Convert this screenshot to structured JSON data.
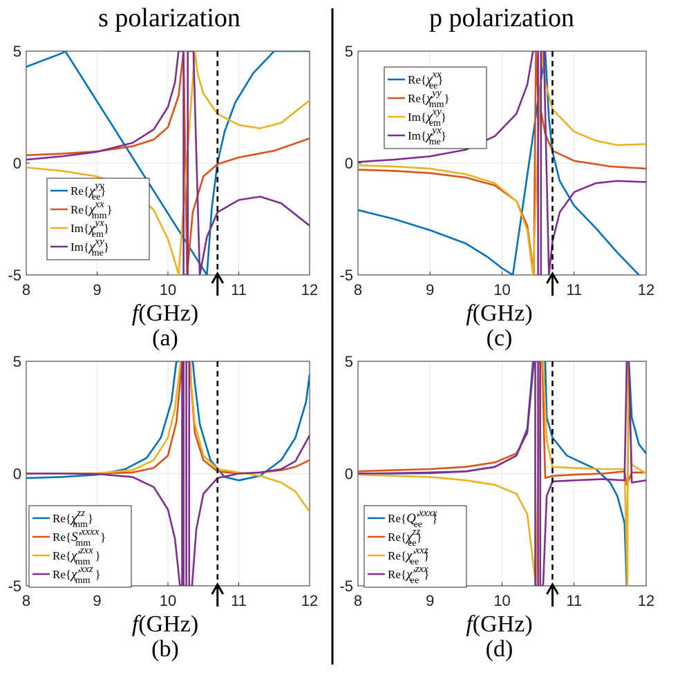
{
  "figure": {
    "left_title": "s polarization",
    "right_title": "p polarization"
  },
  "colors": {
    "blue": "#0072BD",
    "orange": "#D95319",
    "yellow": "#EDB120",
    "purple": "#7E2F8E"
  },
  "chart_data": [
    {
      "id": "a",
      "type": "line",
      "panel_label": "(a)",
      "xlabel_italic": "f",
      "xlabel_unit": "(GHz)",
      "xlim": [
        8,
        12
      ],
      "ylim": [
        -5,
        5
      ],
      "xticks": [
        "8",
        "9",
        "10",
        "11",
        "12"
      ],
      "yticks": [
        "5",
        "0",
        "-5"
      ],
      "grid": true,
      "marker_freq": 10.7,
      "legend_position": "lower-left",
      "series": [
        {
          "name": "Re{χ_ee^yy}",
          "color": "blue",
          "x": [
            8,
            8.5,
            8.55,
            10.55,
            10.62,
            10.7,
            10.8,
            10.95,
            11.2,
            11.5,
            12
          ],
          "y": [
            4.3,
            4.9,
            5.0,
            -5.0,
            -2.0,
            0.0,
            1.4,
            2.7,
            4.0,
            5.0,
            5.0
          ]
        },
        {
          "name": "Re{χ_mm^xx}",
          "color": "orange",
          "x": [
            8,
            8.5,
            9,
            9.5,
            9.8,
            10,
            10.15,
            10.22,
            10.27,
            10.35,
            10.5,
            10.7,
            11,
            11.5,
            12
          ],
          "y": [
            0.35,
            0.42,
            0.52,
            0.75,
            1.05,
            1.6,
            3.0,
            5.0,
            -5.0,
            -2.2,
            -0.6,
            -0.05,
            0.25,
            0.55,
            1.1
          ]
        },
        {
          "name": "Im{χ_em^yx}",
          "color": "yellow",
          "x": [
            8,
            8.5,
            9,
            9.5,
            9.8,
            10,
            10.1,
            10.15,
            10.38,
            10.42,
            10.5,
            10.7,
            11,
            11.3,
            11.6,
            12
          ],
          "y": [
            -0.2,
            -0.35,
            -0.6,
            -1.2,
            -2.1,
            -3.4,
            -4.4,
            -5.0,
            5.0,
            4.0,
            3.1,
            2.2,
            1.7,
            1.55,
            1.8,
            2.8
          ]
        },
        {
          "name": "Im{χ_me^xy}",
          "color": "purple",
          "x": [
            8,
            8.5,
            9,
            9.5,
            9.8,
            10,
            10.1,
            10.15,
            10.22,
            10.22,
            10.28,
            10.28,
            10.36,
            10.45,
            10.55,
            10.7,
            11,
            11.3,
            11.6,
            12
          ],
          "y": [
            0.15,
            0.3,
            0.5,
            0.9,
            1.5,
            2.5,
            3.6,
            5.0,
            5.0,
            -5.0,
            -5.0,
            5.0,
            5.0,
            -5.0,
            -3.3,
            -2.2,
            -1.65,
            -1.5,
            -1.8,
            -2.8
          ]
        }
      ],
      "legend": [
        {
          "prefix": "Re",
          "sym": "χ",
          "sup": "yy",
          "sub": "ee",
          "color": "blue"
        },
        {
          "prefix": "Re",
          "sym": "χ",
          "sup": "xx",
          "sub": "mm",
          "color": "orange"
        },
        {
          "prefix": "Im",
          "sym": "χ",
          "sup": "yx",
          "sub": "em",
          "color": "yellow"
        },
        {
          "prefix": "Im",
          "sym": "χ",
          "sup": "xy",
          "sub": "me",
          "color": "purple"
        }
      ]
    },
    {
      "id": "b",
      "type": "line",
      "panel_label": "(b)",
      "xlabel_italic": "f",
      "xlabel_unit": "(GHz)",
      "xlim": [
        8,
        12
      ],
      "ylim": [
        -5,
        5
      ],
      "xticks": [
        "8",
        "9",
        "10",
        "11",
        "12"
      ],
      "yticks": [
        "5",
        "0",
        "-5"
      ],
      "grid": true,
      "marker_freq": 10.7,
      "legend_position": "lower-left",
      "series": [
        {
          "name": "Re{χ_mm^zz}",
          "color": "blue",
          "x": [
            8,
            8.5,
            9,
            9.4,
            9.7,
            9.9,
            10.05,
            10.12,
            10.15,
            10.35,
            10.38,
            10.45,
            10.6,
            10.8,
            11,
            11.3,
            11.6,
            11.8,
            11.95,
            12
          ],
          "y": [
            -0.2,
            -0.15,
            -0.05,
            0.2,
            0.7,
            1.6,
            3.2,
            5.0,
            5.0,
            5.0,
            4.0,
            2.2,
            0.6,
            -0.15,
            -0.3,
            -0.1,
            0.6,
            1.6,
            3.2,
            4.4
          ]
        },
        {
          "name": "Re{S'_mm^xxxx}",
          "color": "orange",
          "x": [
            8,
            8.5,
            9,
            9.5,
            9.8,
            10,
            10.12,
            10.2,
            10.22,
            10.3,
            10.32,
            10.38,
            10.5,
            10.7,
            11,
            11.3,
            11.6,
            11.8,
            12
          ],
          "y": [
            0,
            0,
            0,
            0.05,
            0.25,
            0.8,
            2.3,
            5.0,
            5.0,
            5.0,
            4.3,
            1.8,
            0.6,
            0.1,
            0.0,
            0.05,
            0.15,
            0.3,
            0.6
          ]
        },
        {
          "name": "Re{χ'_mm^zxx}",
          "color": "yellow",
          "x": [
            8,
            8.5,
            9,
            9.5,
            9.8,
            10,
            10.1,
            10.18,
            10.19,
            10.32,
            10.33,
            10.38,
            10.5,
            10.7,
            11,
            11.3,
            11.6,
            11.8,
            12
          ],
          "y": [
            0,
            0,
            0.02,
            0.15,
            0.6,
            1.6,
            2.9,
            5.0,
            5.0,
            5.0,
            4.0,
            2.2,
            0.8,
            0.2,
            0.05,
            -0.1,
            -0.4,
            -0.8,
            -1.7
          ]
        },
        {
          "name": "Re{χ'_mm^xxz}",
          "color": "purple",
          "x": [
            8,
            8.5,
            9,
            9.5,
            9.8,
            10,
            10.1,
            10.17,
            10.2,
            10.2,
            10.22,
            10.22,
            10.26,
            10.26,
            10.3,
            10.3,
            10.34,
            10.4,
            10.5,
            10.7,
            11,
            11.3,
            11.6,
            11.8,
            12
          ],
          "y": [
            0,
            0,
            -0.02,
            -0.15,
            -0.6,
            -1.6,
            -2.9,
            -5.0,
            -5.0,
            5.0,
            5.0,
            -5.0,
            -5.0,
            5.0,
            5.0,
            -5.0,
            -5.0,
            -2.5,
            -0.9,
            -0.2,
            0.0,
            0.05,
            0.2,
            0.55,
            1.7
          ]
        }
      ],
      "legend": [
        {
          "prefix": "Re",
          "sym": "χ",
          "sup": "zz",
          "sub": "mm",
          "color": "blue"
        },
        {
          "prefix": "Re",
          "sym": "S′",
          "sup": "xxxx",
          "sub": "mm",
          "color": "orange"
        },
        {
          "prefix": "Re",
          "sym": "χ′",
          "sup": "zxx",
          "sub": "mm",
          "color": "yellow"
        },
        {
          "prefix": "Re",
          "sym": "χ′",
          "sup": "xxz",
          "sub": "mm",
          "color": "purple"
        }
      ]
    },
    {
      "id": "c",
      "type": "line",
      "panel_label": "(c)",
      "xlabel_italic": "f",
      "xlabel_unit": "(GHz)",
      "xlim": [
        8,
        12
      ],
      "ylim": [
        -5,
        5
      ],
      "xticks": [
        "8",
        "9",
        "10",
        "11",
        "12"
      ],
      "yticks": [
        "5",
        "0",
        "-5"
      ],
      "grid": true,
      "marker_freq": 10.7,
      "legend_position": "upper-left",
      "series": [
        {
          "name": "Re{χ_ee^xx}",
          "color": "blue",
          "x": [
            8,
            8.5,
            9,
            9.5,
            9.8,
            10.0,
            10.15,
            10.6,
            10.65,
            10.7,
            10.8,
            11,
            11.3,
            11.6,
            11.9
          ],
          "y": [
            -2.1,
            -2.5,
            -3.0,
            -3.6,
            -4.2,
            -4.7,
            -5.0,
            5.0,
            2.0,
            0.5,
            -0.8,
            -1.9,
            -2.9,
            -4.0,
            -5.0
          ]
        },
        {
          "name": "Re{χ_mm^yy}",
          "color": "orange",
          "x": [
            8,
            8.5,
            9,
            9.5,
            9.9,
            10.2,
            10.35,
            10.44,
            10.47,
            10.5,
            10.6,
            10.7,
            11,
            11.5,
            12
          ],
          "y": [
            -0.3,
            -0.35,
            -0.45,
            -0.65,
            -1.0,
            -1.7,
            -2.8,
            -5.0,
            5.0,
            3.0,
            1.3,
            0.55,
            0.1,
            -0.15,
            -0.25
          ]
        },
        {
          "name": "Im{χ_em^xy}",
          "color": "yellow",
          "x": [
            8,
            8.5,
            9,
            9.5,
            9.9,
            10.2,
            10.35,
            10.43,
            10.55,
            10.6,
            10.7,
            11,
            11.3,
            11.6,
            12
          ],
          "y": [
            -0.1,
            -0.15,
            -0.25,
            -0.5,
            -0.9,
            -1.7,
            -3.0,
            -5.0,
            5.0,
            3.6,
            2.4,
            1.4,
            1.0,
            0.8,
            0.85
          ]
        },
        {
          "name": "Im{χ_me^yx}",
          "color": "purple",
          "x": [
            8,
            8.5,
            9,
            9.5,
            9.9,
            10.2,
            10.35,
            10.43,
            10.5,
            10.5,
            10.54,
            10.54,
            10.58,
            10.65,
            10.7,
            10.8,
            11,
            11.3,
            11.6,
            12
          ],
          "y": [
            0.05,
            0.15,
            0.3,
            0.6,
            1.2,
            2.2,
            3.5,
            5.0,
            5.0,
            -5.0,
            -5.0,
            5.0,
            5.0,
            -5.0,
            -3.5,
            -2.2,
            -1.3,
            -0.9,
            -0.8,
            -0.85
          ]
        }
      ],
      "legend": [
        {
          "prefix": "Re",
          "sym": "χ",
          "sup": "xx",
          "sub": "ee",
          "color": "blue"
        },
        {
          "prefix": "Re",
          "sym": "χ",
          "sup": "yy",
          "sub": "mm",
          "color": "orange"
        },
        {
          "prefix": "Im",
          "sym": "χ",
          "sup": "xy",
          "sub": "em",
          "color": "yellow"
        },
        {
          "prefix": "Im",
          "sym": "χ",
          "sup": "yx",
          "sub": "me",
          "color": "purple"
        }
      ]
    },
    {
      "id": "d",
      "type": "line",
      "panel_label": "(d)",
      "xlabel_italic": "f",
      "xlabel_unit": "(GHz)",
      "xlim": [
        8,
        12
      ],
      "ylim": [
        -5,
        5
      ],
      "xticks": [
        "8",
        "9",
        "10",
        "11",
        "12"
      ],
      "yticks": [
        "5",
        "0",
        "-5"
      ],
      "grid": true,
      "marker_freq": 10.7,
      "legend_position": "lower-left",
      "series": [
        {
          "name": "Re{Q'_ee^xxxx}",
          "color": "blue",
          "x": [
            8,
            8.5,
            9,
            9.5,
            9.9,
            10.2,
            10.35,
            10.43,
            10.44,
            10.6,
            10.62,
            10.7,
            10.9,
            11.1,
            11.3,
            11.5,
            11.6,
            11.7,
            11.73,
            11.76,
            11.8,
            11.9,
            12
          ],
          "y": [
            0,
            0,
            0.02,
            0.1,
            0.3,
            0.8,
            2.0,
            5.0,
            5.0,
            5.0,
            2.5,
            1.6,
            0.8,
            0.5,
            0.2,
            -0.4,
            -1.0,
            -2.2,
            -5.0,
            5.0,
            2.5,
            1.3,
            0.9
          ]
        },
        {
          "name": "Re{χ_ee^zz}",
          "color": "orange",
          "x": [
            8,
            8.5,
            9,
            9.5,
            9.9,
            10.2,
            10.35,
            10.44,
            10.46,
            10.5,
            10.56,
            10.58,
            10.6,
            10.7,
            11,
            11.4,
            11.7,
            11.73,
            11.8,
            12
          ],
          "y": [
            0.1,
            0.15,
            0.2,
            0.3,
            0.5,
            0.9,
            1.8,
            5.0,
            5.0,
            5.0,
            5.0,
            2.0,
            -0.2,
            -0.1,
            -0.05,
            0.0,
            0.1,
            -0.5,
            0.05,
            0.05
          ]
        },
        {
          "name": "Re{χ'_ee^xxz}",
          "color": "yellow",
          "x": [
            8,
            8.5,
            9,
            9.5,
            9.9,
            10.2,
            10.35,
            10.47,
            10.53,
            10.57,
            10.62,
            10.7,
            11,
            11.4,
            11.7,
            11.74,
            11.75,
            11.8,
            12
          ],
          "y": [
            -0.05,
            -0.1,
            -0.15,
            -0.3,
            -0.5,
            -0.9,
            -1.8,
            -5.0,
            5.0,
            5.0,
            1.5,
            0.3,
            0.25,
            0.2,
            0.2,
            -5.0,
            5.0,
            0.4,
            0.0
          ]
        },
        {
          "name": "Re{χ'_ee^zxx}",
          "color": "purple",
          "x": [
            8,
            8.5,
            9,
            9.5,
            9.9,
            10.2,
            10.35,
            10.44,
            10.46,
            10.46,
            10.5,
            10.5,
            10.53,
            10.53,
            10.57,
            10.62,
            10.7,
            11,
            11.4,
            11.7,
            11.73,
            11.76,
            11.8,
            12
          ],
          "y": [
            0,
            0.02,
            0.05,
            0.1,
            0.3,
            0.8,
            1.9,
            5.0,
            5.0,
            -5.0,
            -5.0,
            5.0,
            5.0,
            -5.0,
            -5.0,
            -1.0,
            -0.35,
            -0.3,
            -0.25,
            -0.3,
            5.0,
            5.0,
            -0.4,
            -0.3
          ]
        }
      ],
      "legend": [
        {
          "prefix": "Re",
          "sym": "Q′",
          "sup": "xxxx",
          "sub": "ee",
          "color": "blue"
        },
        {
          "prefix": "Re",
          "sym": "χ",
          "sup": "zz",
          "sub": "ee",
          "color": "orange"
        },
        {
          "prefix": "Re",
          "sym": "χ′",
          "sup": "xxz",
          "sub": "ee",
          "color": "yellow"
        },
        {
          "prefix": "Re",
          "sym": "χ′",
          "sup": "zxx",
          "sub": "ee",
          "color": "purple"
        }
      ]
    }
  ]
}
